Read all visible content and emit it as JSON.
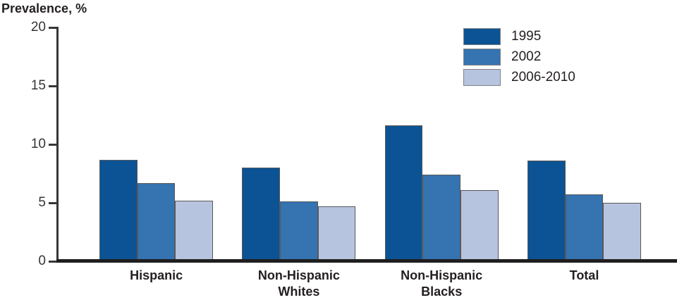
{
  "title": "Prevalence, %",
  "chart_data": {
    "type": "bar",
    "title": "",
    "ylabel": "Prevalence, %",
    "xlabel": "",
    "ylim": [
      0,
      20
    ],
    "yticks": [
      0,
      5,
      10,
      15,
      20
    ],
    "grid": false,
    "legend_position": "top-right",
    "categories": [
      "Hispanic",
      "Non-Hispanic\nWhites",
      "Non-Hispanic\nBlacks",
      "Total"
    ],
    "series": [
      {
        "name": "1995",
        "color": "#0b5394",
        "values": [
          8.7,
          8.0,
          11.6,
          8.6
        ]
      },
      {
        "name": "2002",
        "color": "#3573b1",
        "values": [
          6.7,
          5.1,
          7.4,
          5.7
        ]
      },
      {
        "name": "2006-2010",
        "color": "#b7c4df",
        "values": [
          5.2,
          4.7,
          6.1,
          5.0
        ]
      }
    ]
  },
  "colors": {
    "axis_line": "#373737",
    "baseline": "#1f1e1e",
    "bar_border": "#58595b",
    "swatch_border": "#808285",
    "text": "#231f20",
    "tick_text": "#363639",
    "background": "#ffffff"
  }
}
